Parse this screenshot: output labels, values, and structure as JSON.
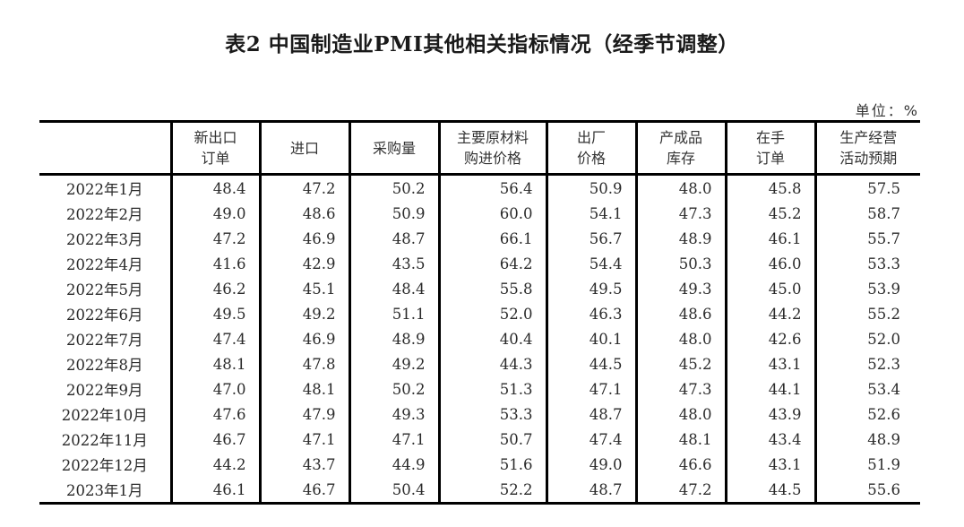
{
  "title": "表2 中国制造业PMI其他相关指标情况（经季节调整）",
  "unit_label": "单位：%",
  "table": {
    "columns": [
      {
        "lines": [
          "",
          ""
        ]
      },
      {
        "lines": [
          "新出口",
          "订单"
        ]
      },
      {
        "lines": [
          "进口",
          ""
        ]
      },
      {
        "lines": [
          "采购量",
          ""
        ]
      },
      {
        "lines": [
          "主要原材料",
          "购进价格"
        ]
      },
      {
        "lines": [
          "出厂",
          "价格"
        ]
      },
      {
        "lines": [
          "产成品",
          "库存"
        ]
      },
      {
        "lines": [
          "在手",
          "订单"
        ]
      },
      {
        "lines": [
          "生产经营",
          "活动预期"
        ]
      }
    ],
    "rows": [
      {
        "month": "2022年1月",
        "values": [
          "48.4",
          "47.2",
          "50.2",
          "56.4",
          "50.9",
          "48.0",
          "45.8",
          "57.5"
        ]
      },
      {
        "month": "2022年2月",
        "values": [
          "49.0",
          "48.6",
          "50.9",
          "60.0",
          "54.1",
          "47.3",
          "45.2",
          "58.7"
        ]
      },
      {
        "month": "2022年3月",
        "values": [
          "47.2",
          "46.9",
          "48.7",
          "66.1",
          "56.7",
          "48.9",
          "46.1",
          "55.7"
        ]
      },
      {
        "month": "2022年4月",
        "values": [
          "41.6",
          "42.9",
          "43.5",
          "64.2",
          "54.4",
          "50.3",
          "46.0",
          "53.3"
        ]
      },
      {
        "month": "2022年5月",
        "values": [
          "46.2",
          "45.1",
          "48.4",
          "55.8",
          "49.5",
          "49.3",
          "45.0",
          "53.9"
        ]
      },
      {
        "month": "2022年6月",
        "values": [
          "49.5",
          "49.2",
          "51.1",
          "52.0",
          "46.3",
          "48.6",
          "44.2",
          "55.2"
        ]
      },
      {
        "month": "2022年7月",
        "values": [
          "47.4",
          "46.9",
          "48.9",
          "40.4",
          "40.1",
          "48.0",
          "42.6",
          "52.0"
        ]
      },
      {
        "month": "2022年8月",
        "values": [
          "48.1",
          "47.8",
          "49.2",
          "44.3",
          "44.5",
          "45.2",
          "43.1",
          "52.3"
        ]
      },
      {
        "month": "2022年9月",
        "values": [
          "47.0",
          "48.1",
          "50.2",
          "51.3",
          "47.1",
          "47.3",
          "44.1",
          "53.4"
        ]
      },
      {
        "month": "2022年10月",
        "values": [
          "47.6",
          "47.9",
          "49.3",
          "53.3",
          "48.7",
          "48.0",
          "43.9",
          "52.6"
        ]
      },
      {
        "month": "2022年11月",
        "values": [
          "46.7",
          "47.1",
          "47.1",
          "50.7",
          "47.4",
          "48.1",
          "43.4",
          "48.9"
        ]
      },
      {
        "month": "2022年12月",
        "values": [
          "44.2",
          "43.7",
          "44.9",
          "51.6",
          "49.0",
          "46.6",
          "43.1",
          "51.9"
        ]
      },
      {
        "month": "2023年1月",
        "values": [
          "46.1",
          "46.7",
          "50.4",
          "52.2",
          "48.7",
          "47.2",
          "44.5",
          "55.6"
        ]
      }
    ]
  }
}
